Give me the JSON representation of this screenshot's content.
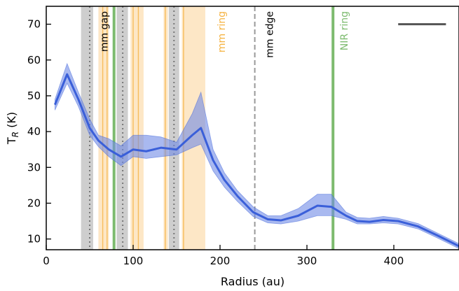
{
  "chart_data": {
    "type": "line",
    "title": "",
    "xlabel": "Radius (au)",
    "ylabel_main": "T",
    "ylabel_sub": "R",
    "ylabel_unit": " (K)",
    "xlim": [
      0,
      475
    ],
    "ylim": [
      7,
      75
    ],
    "xticks": [
      0,
      100,
      200,
      300,
      400
    ],
    "yticks": [
      10,
      20,
      30,
      40,
      50,
      60,
      70
    ],
    "grid": false,
    "colors": {
      "line": "#3a5fd9",
      "band": "#6f8be6",
      "mm_gap": "#bdbdbd",
      "mm_ring_fill": "#fde7c6",
      "mm_ring_line": "#f5b342",
      "mm_edge": "#999999",
      "nir_ring": "#7dbb6f",
      "scale_bar": "#555555"
    },
    "series": [
      {
        "x": [
          10,
          24,
          37,
          50,
          60,
          72,
          86,
          100,
          115,
          132,
          150,
          168,
          178,
          192,
          205,
          220,
          238,
          255,
          270,
          290,
          312,
          328,
          345,
          358,
          372,
          388,
          405,
          428,
          450,
          475
        ],
        "y": [
          47.5,
          56,
          49,
          41,
          37.5,
          35,
          33,
          35,
          34.5,
          35.5,
          35,
          39,
          41,
          32,
          26.5,
          22,
          17.5,
          15.5,
          15.2,
          16.5,
          19.3,
          19,
          16.5,
          15,
          14.8,
          15.3,
          15,
          13.5,
          11,
          8
        ],
        "y_low": [
          46,
          53.5,
          47,
          39,
          35.8,
          33,
          30.5,
          33,
          32.5,
          33,
          33.5,
          35.5,
          36.5,
          29,
          24.5,
          20.5,
          16.3,
          14.5,
          14.2,
          15,
          16.5,
          16.5,
          15.5,
          14.2,
          14.2,
          14.5,
          14.2,
          12.8,
          10.3,
          7.3
        ],
        "y_high": [
          49,
          59,
          51,
          43.5,
          39,
          38,
          36,
          39,
          39,
          38.5,
          37,
          45,
          51,
          35,
          28.5,
          23.5,
          19,
          16.5,
          16.5,
          18.5,
          22.5,
          22.5,
          17.5,
          16,
          15.8,
          16.3,
          15.8,
          14.3,
          11.7,
          8.7
        ]
      }
    ],
    "mm_gaps": [
      [
        40,
        54
      ],
      [
        81,
        94
      ],
      [
        141,
        153
      ]
    ],
    "mm_gap_centers": [
      50,
      88,
      147
    ],
    "mm_ring_bands": [
      [
        60,
        72
      ],
      [
        97,
        112
      ],
      [
        135,
        140
      ],
      [
        156,
        183
      ]
    ],
    "mm_ring_lines": [
      65,
      70,
      100,
      106,
      137,
      158
    ],
    "mm_edge": 240,
    "nir_ring": 330,
    "nir_ring_inner": 78,
    "scale_bar": [
      405,
      460,
      70
    ],
    "annotations": {
      "mm_gap": "mm gap",
      "mm_ring": "mm ring",
      "mm_edge": "mm edge",
      "nir_ring": "NIR ring"
    }
  }
}
